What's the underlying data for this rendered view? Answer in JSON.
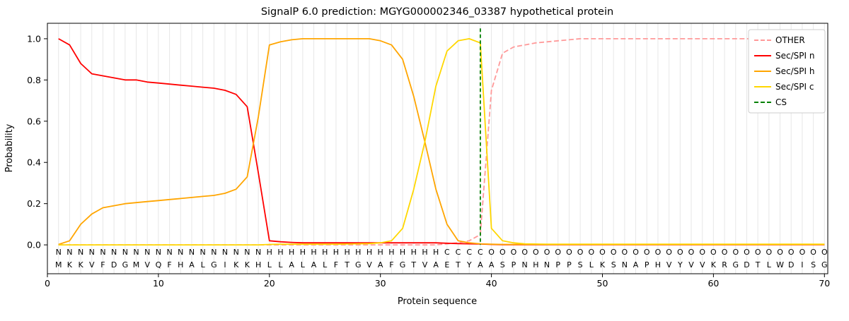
{
  "figure": {
    "title": "SignalP 6.0 prediction: MGYG000002346_03387 hypothetical protein"
  },
  "chart_data": {
    "type": "line",
    "title": "SignalP 6.0 prediction: MGYG000002346_03387 hypothetical protein",
    "xlabel": "Protein sequence",
    "ylabel": "Probability",
    "xlim": [
      0,
      70.3
    ],
    "ylim": [
      -0.14,
      1.075
    ],
    "xticks": [
      0,
      10,
      20,
      30,
      40,
      50,
      60,
      70
    ],
    "yticks": [
      0.0,
      0.2,
      0.4,
      0.6,
      0.8,
      1.0
    ],
    "x_start": 1,
    "grid": true,
    "grid_color": "#e7e7e7",
    "legend_position": "upper right",
    "legend": [
      "OTHER",
      "Sec/SPI n",
      "Sec/SPI h",
      "Sec/SPI c",
      "CS"
    ],
    "series": [
      {
        "name": "OTHER",
        "color": "#ff9999",
        "linestyle": "dashed",
        "values": [
          0,
          0,
          0,
          0,
          0,
          0,
          0,
          0,
          0,
          0,
          0,
          0,
          0,
          0,
          0,
          0,
          0,
          0,
          0,
          0,
          0,
          0,
          0,
          0,
          0,
          0,
          0,
          0,
          0,
          0,
          0,
          0,
          0,
          0,
          0,
          0.005,
          0.01,
          0.02,
          0.05,
          0.75,
          0.93,
          0.96,
          0.97,
          0.98,
          0.985,
          0.99,
          0.995,
          1.0,
          1.0,
          1.0,
          1.0,
          1.0,
          1.0,
          1.0,
          1.0,
          1.0,
          1.0,
          1.0,
          1.0,
          1.0,
          1.0,
          1.0,
          1.0,
          1.0,
          1.0,
          1.0,
          1.0,
          1.0,
          1.0,
          1.0
        ]
      },
      {
        "name": "Sec/SPI n",
        "color": "#ff0000",
        "linestyle": "solid",
        "values": [
          1.0,
          0.97,
          0.88,
          0.83,
          0.82,
          0.81,
          0.8,
          0.8,
          0.79,
          0.785,
          0.78,
          0.775,
          0.77,
          0.765,
          0.76,
          0.75,
          0.73,
          0.67,
          0.35,
          0.02,
          0.015,
          0.012,
          0.01,
          0.01,
          0.01,
          0.01,
          0.01,
          0.01,
          0.01,
          0.01,
          0.01,
          0.01,
          0.01,
          0.01,
          0.01,
          0.008,
          0.006,
          0.005,
          0.004,
          0.002,
          0.001,
          0.001,
          0.001,
          0.001,
          0.001,
          0.001,
          0.001,
          0.001,
          0.001,
          0.001,
          0.001,
          0.001,
          0.001,
          0.001,
          0.001,
          0.001,
          0.001,
          0.001,
          0.001,
          0.001,
          0.001,
          0.001,
          0.001,
          0.001,
          0.001,
          0.001,
          0.001,
          0.001,
          0.001,
          0.001
        ]
      },
      {
        "name": "Sec/SPI h",
        "color": "#ffa500",
        "linestyle": "solid",
        "values": [
          0.002,
          0.02,
          0.1,
          0.15,
          0.18,
          0.19,
          0.2,
          0.205,
          0.21,
          0.215,
          0.22,
          0.225,
          0.23,
          0.235,
          0.24,
          0.25,
          0.27,
          0.33,
          0.62,
          0.97,
          0.985,
          0.995,
          1.0,
          1.0,
          1.0,
          1.0,
          1.0,
          1.0,
          1.0,
          0.99,
          0.97,
          0.9,
          0.72,
          0.5,
          0.27,
          0.1,
          0.02,
          0.01,
          0.005,
          0.003,
          0.002,
          0.002,
          0.002,
          0.002,
          0.002,
          0.002,
          0.002,
          0.002,
          0.002,
          0.002,
          0.002,
          0.002,
          0.002,
          0.002,
          0.002,
          0.002,
          0.002,
          0.002,
          0.002,
          0.002,
          0.002,
          0.002,
          0.002,
          0.002,
          0.002,
          0.002,
          0.002,
          0.002,
          0.002,
          0.002
        ]
      },
      {
        "name": "Sec/SPI c",
        "color": "#ffd700",
        "linestyle": "solid",
        "values": [
          0,
          0,
          0,
          0,
          0,
          0,
          0,
          0,
          0,
          0,
          0,
          0,
          0,
          0,
          0,
          0,
          0,
          0,
          0,
          0.002,
          0.003,
          0.003,
          0.003,
          0.003,
          0.003,
          0.003,
          0.004,
          0.005,
          0.006,
          0.01,
          0.02,
          0.08,
          0.27,
          0.5,
          0.77,
          0.94,
          0.99,
          1.0,
          0.98,
          0.08,
          0.02,
          0.01,
          0.005,
          0.004,
          0.003,
          0.003,
          0.003,
          0.003,
          0.003,
          0.003,
          0.003,
          0.003,
          0.003,
          0.003,
          0.003,
          0.003,
          0.003,
          0.003,
          0.003,
          0.003,
          0.003,
          0.003,
          0.003,
          0.003,
          0.003,
          0.003,
          0.003,
          0.003,
          0.003,
          0.003
        ]
      }
    ],
    "cs_marker": {
      "name": "CS",
      "x": 39,
      "color": "#008000",
      "linestyle": "dashed"
    },
    "sequence": "MKKVFDGMVQFHALGIKKHLLALALFTGVAFGTVAETYAASPNHNPPSLKSNAPHVYVVKRGDTLWDISG",
    "region_labels": "NNNNNNNNNNNNNNNNNNNHHHHHHHHHHHHHHHHCCCCOOOOOOOOOOOOOOOOOOOOOOOOOOOOOOO",
    "region_colors": {
      "N": "#ff0000",
      "H": "#ffa500",
      "C": "#ffd700",
      "O": "#9a9a9a"
    }
  }
}
